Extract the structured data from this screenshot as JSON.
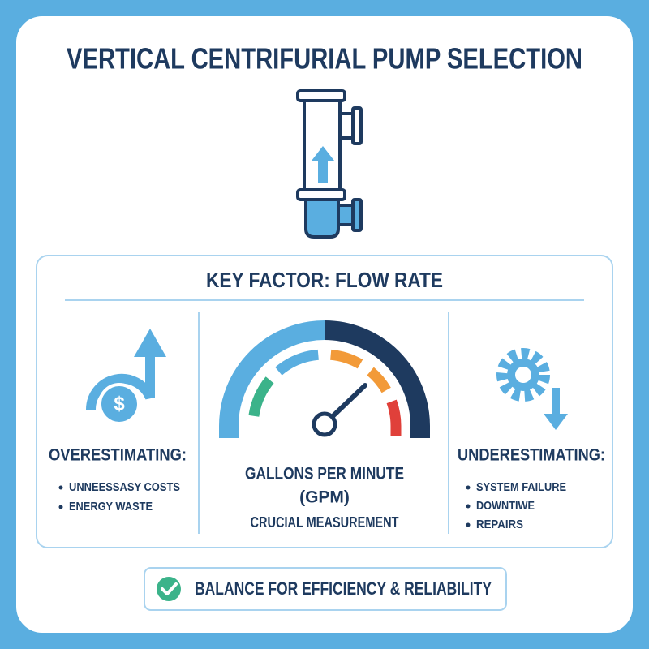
{
  "header": {
    "title": "VERTICAL CENTRIFURIAL PUMP SELECTION"
  },
  "panel": {
    "title": "KEY FACTOR: FLOW RATE",
    "left": {
      "heading": "OVERESTIMATING:",
      "items": [
        "UNNEESSASY COSTS",
        "ENERGY WASTE"
      ]
    },
    "center": {
      "lines": [
        "GALLONS PER MINUTE",
        "(GPM)",
        "CRUCIAL MEASUREMENT"
      ]
    },
    "right": {
      "heading": "UNDERESTIMATING:",
      "items": [
        "SYSTEM FAILURE",
        "DOWNTIWE",
        "REPAIRS"
      ]
    }
  },
  "footer": {
    "text": "BALANCE FOR EFFICIENCY & RELIABILITY"
  }
}
